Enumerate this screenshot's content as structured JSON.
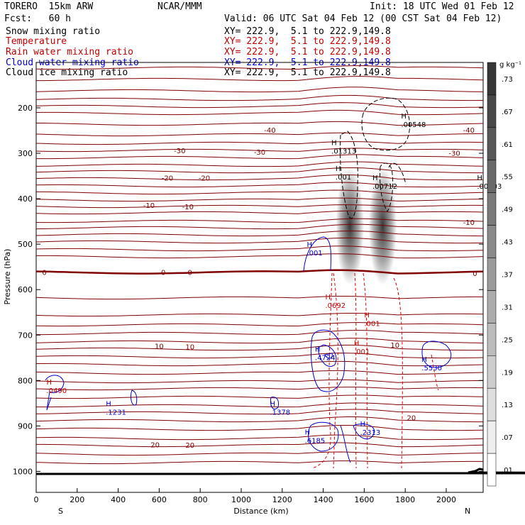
{
  "header": {
    "model": "TORERO  15km ARW",
    "org": "NCAR/MMM",
    "init": "Init: 18 UTC Wed 01 Feb 12",
    "fcst": "Fcst:   60 h",
    "valid": "Valid: 06 UTC Sat 04 Feb 12 (00 CST Sat 04 Feb 12)"
  },
  "fields": [
    {
      "name": "Snow mixing ratio",
      "xy": "XY= 222.9,  5.1 to 222.9,149.8",
      "color": "#000000"
    },
    {
      "name": "Temperature",
      "xy": "XY= 222.9,  5.1 to 222.9,149.8",
      "color": "#c00000"
    },
    {
      "name": "Rain water mixing ratio",
      "xy": "XY= 222.9,  5.1 to 222.9,149.8",
      "color": "#c00000"
    },
    {
      "name": "Cloud water mixing ratio",
      "xy": "XY= 222.9,  5.1 to 222.9,149.8",
      "color": "#0000cc"
    },
    {
      "name": "Cloud ice mixing ratio",
      "xy": "XY= 222.9,  5.1 to 222.9,149.8",
      "color": "#000000"
    }
  ],
  "chart_data": {
    "type": "cross-section",
    "xlabel": "Distance (km)",
    "ylabel": "Pressure (hPa)",
    "x_ticks": [
      0,
      200,
      400,
      600,
      800,
      1000,
      1200,
      1400,
      1600,
      1800,
      2000
    ],
    "y_ticks": [
      200,
      300,
      400,
      500,
      600,
      700,
      800,
      900,
      1000
    ],
    "xlim": [
      0,
      2180
    ],
    "ylim_pressure": [
      100,
      1050
    ],
    "x_end_labels": {
      "left": "S",
      "right": "N"
    },
    "colorbar": {
      "unit": "g kg⁻¹",
      "levels": [
        ".01",
        ".07",
        ".13",
        ".19",
        ".25",
        ".31",
        ".37",
        ".43",
        ".49",
        ".55",
        ".61",
        ".67",
        ".73"
      ]
    },
    "temperature_labels": [
      {
        "label": "-40",
        "x": 1140,
        "p": 255
      },
      {
        "label": "-40",
        "x": 2110,
        "p": 255
      },
      {
        "label": "-30",
        "x": 700,
        "p": 300
      },
      {
        "label": "-30",
        "x": 1090,
        "p": 303
      },
      {
        "label": "-30",
        "x": 2040,
        "p": 305
      },
      {
        "label": "-20",
        "x": 640,
        "p": 360
      },
      {
        "label": "-20",
        "x": 820,
        "p": 360
      },
      {
        "label": "-10",
        "x": 550,
        "p": 420
      },
      {
        "label": "-10",
        "x": 740,
        "p": 423
      },
      {
        "label": "-10",
        "x": 2110,
        "p": 458
      },
      {
        "label": "0",
        "x": 40,
        "p": 568
      },
      {
        "label": "0",
        "x": 620,
        "p": 568
      },
      {
        "label": "0",
        "x": 750,
        "p": 568
      },
      {
        "label": "0",
        "x": 2140,
        "p": 570
      },
      {
        "label": "10",
        "x": 600,
        "p": 730
      },
      {
        "label": "10",
        "x": 750,
        "p": 732
      },
      {
        "label": "10",
        "x": 1750,
        "p": 728
      },
      {
        "label": "20",
        "x": 580,
        "p": 947
      },
      {
        "label": "20",
        "x": 750,
        "p": 948
      },
      {
        "label": "20",
        "x": 1830,
        "p": 888
      }
    ],
    "maxima": [
      {
        "label": ".00548",
        "x": 1780,
        "p": 242,
        "color": "#000000"
      },
      {
        "label": ".01313",
        "x": 1440,
        "p": 301,
        "color": "#000000"
      },
      {
        "label": ".001",
        "x": 1460,
        "p": 358,
        "color": "#000000"
      },
      {
        "label": ".00712",
        "x": 1640,
        "p": 378,
        "color": "#000000"
      },
      {
        "label": ".00203",
        "x": 2150,
        "p": 378,
        "color": "#000000"
      },
      {
        "label": ".001",
        "x": 1320,
        "p": 525,
        "color": "#0000cc"
      },
      {
        "label": ".0692",
        "x": 1410,
        "p": 640,
        "color": "#c00000"
      },
      {
        "label": ".001",
        "x": 1600,
        "p": 680,
        "color": "#c00000"
      },
      {
        "label": ".001",
        "x": 1550,
        "p": 742,
        "color": "#c00000"
      },
      {
        "label": ".4724",
        "x": 1360,
        "p": 755,
        "color": "#0000cc"
      },
      {
        "label": ".5530",
        "x": 1880,
        "p": 778,
        "color": "#0000cc"
      },
      {
        "label": ".0490",
        "x": 50,
        "p": 828,
        "color": "#c00000"
      },
      {
        "label": ".1231",
        "x": 340,
        "p": 875,
        "color": "#0000cc"
      },
      {
        "label": ".1378",
        "x": 1140,
        "p": 875,
        "color": "#0000cc"
      },
      {
        "label": ".2313",
        "x": 1580,
        "p": 920,
        "color": "#0000cc"
      },
      {
        "label": ".6185",
        "x": 1310,
        "p": 938,
        "color": "#0000cc"
      }
    ],
    "snow_columns": [
      {
        "x": 1530,
        "p_top": 330,
        "p_bottom": 590,
        "peak": 0.73
      },
      {
        "x": 1690,
        "p_top": 330,
        "p_bottom": 590,
        "peak": 0.73
      }
    ]
  }
}
